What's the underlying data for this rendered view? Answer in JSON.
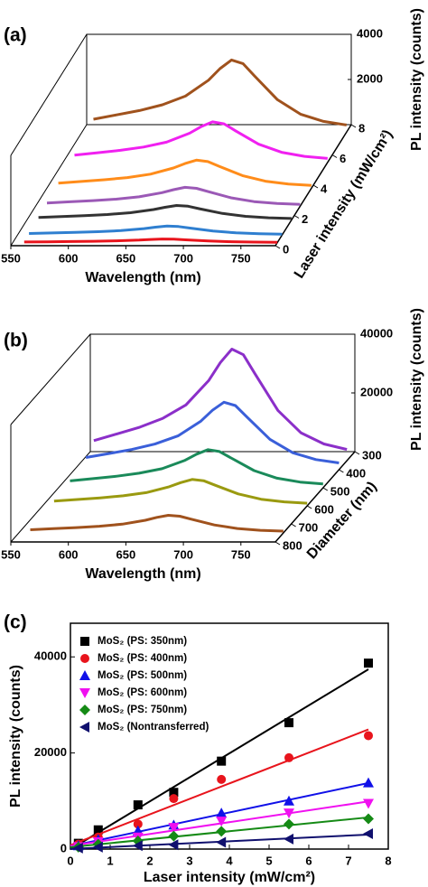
{
  "chart_data": [
    {
      "type": "waterfall",
      "panel_label": "(a)",
      "x_label": "Wavelength (nm)",
      "z_label": "PL intensity (counts)",
      "depth_label": "Laser intensity (mW/cm²)",
      "x": [
        560,
        580,
        600,
        620,
        640,
        660,
        670,
        680,
        690,
        700,
        720,
        740,
        760,
        780
      ],
      "xlim": [
        550,
        780
      ],
      "xticks": [
        550,
        600,
        650,
        700,
        750
      ],
      "zlim": [
        0,
        4000
      ],
      "zticks": [
        2000,
        4000
      ],
      "depthlim": [
        0,
        8
      ],
      "depthticks": [
        0,
        2,
        4,
        6,
        8
      ],
      "series": [
        {
          "depth": 0.2,
          "color": "#e8141c",
          "values": [
            29,
            38,
            48,
            61,
            80,
            115,
            141,
            160,
            152,
            125,
            72,
            40,
            24,
            16
          ]
        },
        {
          "depth": 0.7,
          "color": "#2f7fd0",
          "values": [
            72,
            96,
            120,
            152,
            200,
            288,
            352,
            400,
            380,
            312,
            180,
            100,
            60,
            40
          ]
        },
        {
          "depth": 1.7,
          "color": "#333333",
          "values": [
            115,
            154,
            192,
            243,
            320,
            461,
            563,
            640,
            608,
            499,
            288,
            160,
            96,
            64
          ]
        },
        {
          "depth": 2.6,
          "color": "#9b59b6",
          "values": [
            151,
            202,
            252,
            319,
            420,
            605,
            739,
            840,
            798,
            655,
            378,
            210,
            126,
            84
          ]
        },
        {
          "depth": 3.8,
          "color": "#ff8c1a",
          "values": [
            223,
            298,
            372,
            471,
            620,
            893,
            1091,
            1240,
            1178,
            967,
            558,
            310,
            186,
            124
          ]
        },
        {
          "depth": 5.5,
          "color": "#f020f0",
          "values": [
            324,
            432,
            540,
            684,
            900,
            1296,
            1584,
            1800,
            1710,
            1404,
            810,
            450,
            270,
            180
          ]
        },
        {
          "depth": 7.5,
          "color": "#a0521d",
          "values": [
            576,
            768,
            960,
            1216,
            1600,
            2304,
            2816,
            3200,
            3040,
            2496,
            1440,
            800,
            480,
            320
          ]
        }
      ]
    },
    {
      "type": "waterfall",
      "panel_label": "(b)",
      "x_label": "Wavelength (nm)",
      "z_label": "PL intensity (counts)",
      "depth_label": "Diameter (nm)",
      "x": [
        560,
        580,
        600,
        620,
        640,
        660,
        670,
        680,
        690,
        700,
        720,
        740,
        760,
        780
      ],
      "xlim": [
        550,
        780
      ],
      "xticks": [
        550,
        600,
        650,
        700,
        750
      ],
      "zlim": [
        0,
        40000
      ],
      "zticks": [
        20000,
        40000
      ],
      "depthlim": [
        800,
        300
      ],
      "depthticks": [
        300,
        400,
        500,
        600,
        700,
        800
      ],
      "series": [
        {
          "depth": 750,
          "color": "#a0521d",
          "values": [
            1080,
            1440,
            1800,
            2280,
            3000,
            4320,
            5280,
            6000,
            5700,
            4680,
            2700,
            1500,
            900,
            600
          ]
        },
        {
          "depth": 600,
          "color": "#9a9a10",
          "values": [
            1620,
            2160,
            2700,
            3420,
            4500,
            6480,
            7920,
            9000,
            8550,
            7020,
            4050,
            2250,
            1350,
            900
          ]
        },
        {
          "depth": 500,
          "color": "#1a8a5a",
          "values": [
            2340,
            3120,
            3900,
            4940,
            6500,
            9360,
            11440,
            13000,
            12350,
            10140,
            5850,
            3250,
            1950,
            1300
          ]
        },
        {
          "depth": 400,
          "color": "#3a5fd9",
          "values": [
            4140,
            5520,
            6900,
            8740,
            11500,
            16560,
            20240,
            23000,
            21850,
            17940,
            10350,
            5750,
            3450,
            2300
          ]
        },
        {
          "depth": 350,
          "color": "#8b2fc9",
          "values": [
            6840,
            9120,
            11400,
            14440,
            19000,
            27360,
            33440,
            38000,
            36100,
            29640,
            17100,
            9500,
            5700,
            3800
          ]
        }
      ]
    },
    {
      "type": "scatter",
      "panel_label": "(c)",
      "x_label": "Laser intensity (mW/cm²)",
      "y_label": "PL intensity (counts)",
      "x": [
        0.2,
        0.7,
        1.7,
        2.6,
        3.8,
        5.5,
        7.5
      ],
      "xlim": [
        0,
        8
      ],
      "xticks": [
        0,
        1,
        2,
        3,
        4,
        5,
        6,
        7,
        8
      ],
      "ylim": [
        0,
        47000
      ],
      "yticks": [
        0,
        20000,
        40000
      ],
      "fit": "linear",
      "legend": "upper left",
      "series": [
        {
          "name": "MoS₂ (PS: 350nm)",
          "marker": "square",
          "color": "#000000",
          "values": [
            1200,
            4000,
            9200,
            11800,
            18300,
            26300,
            38700
          ]
        },
        {
          "name": "MoS₂ (PS: 400nm)",
          "marker": "circle",
          "color": "#e8141c",
          "values": [
            1000,
            2500,
            5200,
            10500,
            14500,
            19000,
            23600
          ]
        },
        {
          "name": "MoS₂ (PS: 500nm)",
          "marker": "triangle-up",
          "color": "#1010e8",
          "values": [
            700,
            2000,
            3800,
            5000,
            7500,
            10000,
            13800
          ]
        },
        {
          "name": "MoS₂ (PS: 600nm)",
          "marker": "triangle-down",
          "color": "#f010f0",
          "values": [
            500,
            1500,
            2500,
            4500,
            5800,
            7500,
            9500
          ]
        },
        {
          "name": "MoS₂ (PS: 750nm)",
          "marker": "diamond",
          "color": "#158a15",
          "values": [
            400,
            1000,
            1700,
            2700,
            3700,
            5200,
            6300
          ]
        },
        {
          "name": "MoS₂ (Nontransferred)",
          "marker": "triangle-left",
          "color": "#10106e",
          "values": [
            200,
            400,
            700,
            900,
            1400,
            2100,
            3200
          ]
        }
      ]
    }
  ]
}
